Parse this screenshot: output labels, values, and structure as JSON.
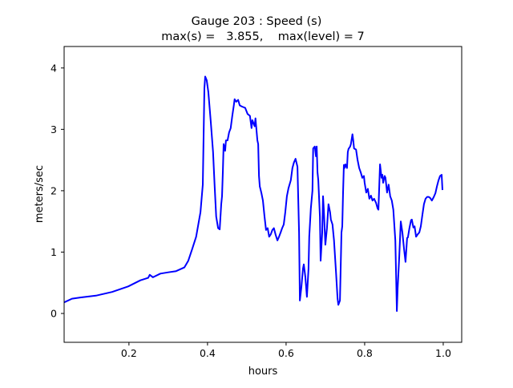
{
  "chart_data": {
    "type": "line",
    "title_line1": "Gauge 203 : Speed (s)",
    "title_line2": "max(s) =   3.855,    max(level) = 7",
    "xlabel": "hours",
    "ylabel": "meters/sec",
    "xlim": [
      0.035,
      1.047
    ],
    "ylim": [
      -0.47,
      4.35
    ],
    "xticks": [
      0.2,
      0.4,
      0.6,
      0.8,
      1.0
    ],
    "xtick_labels": [
      "0.2",
      "0.4",
      "0.6",
      "0.8",
      "1.0"
    ],
    "yticks": [
      0,
      1,
      2,
      3,
      4
    ],
    "ytick_labels": [
      "0",
      "1",
      "2",
      "3",
      "4"
    ],
    "grid": false,
    "series": [
      {
        "name": "speed",
        "color": "#0000ff",
        "x": [
          0.035,
          0.055,
          0.076,
          0.116,
          0.157,
          0.198,
          0.229,
          0.249,
          0.253,
          0.261,
          0.28,
          0.3,
          0.32,
          0.341,
          0.351,
          0.361,
          0.371,
          0.382,
          0.388,
          0.392,
          0.394,
          0.398,
          0.402,
          0.408,
          0.414,
          0.418,
          0.422,
          0.427,
          0.431,
          0.435,
          0.437,
          0.439,
          0.441,
          0.445,
          0.447,
          0.451,
          0.455,
          0.459,
          0.463,
          0.467,
          0.469,
          0.473,
          0.478,
          0.482,
          0.488,
          0.496,
          0.502,
          0.508,
          0.512,
          0.514,
          0.52,
          0.522,
          0.527,
          0.529,
          0.531,
          0.533,
          0.537,
          0.541,
          0.545,
          0.549,
          0.553,
          0.557,
          0.561,
          0.565,
          0.569,
          0.573,
          0.578,
          0.582,
          0.586,
          0.59,
          0.594,
          0.598,
          0.602,
          0.606,
          0.612,
          0.616,
          0.62,
          0.624,
          0.629,
          0.633,
          0.635,
          0.639,
          0.643,
          0.645,
          0.649,
          0.653,
          0.657,
          0.659,
          0.663,
          0.667,
          0.669,
          0.673,
          0.676,
          0.678,
          0.68,
          0.682,
          0.686,
          0.688,
          0.692,
          0.694,
          0.696,
          0.7,
          0.704,
          0.708,
          0.712,
          0.714,
          0.718,
          0.722,
          0.727,
          0.731,
          0.733,
          0.737,
          0.739,
          0.741,
          0.743,
          0.745,
          0.747,
          0.749,
          0.751,
          0.755,
          0.757,
          0.759,
          0.763,
          0.765,
          0.769,
          0.771,
          0.773,
          0.778,
          0.782,
          0.786,
          0.79,
          0.794,
          0.798,
          0.8,
          0.804,
          0.808,
          0.812,
          0.816,
          0.82,
          0.824,
          0.829,
          0.833,
          0.835,
          0.839,
          0.843,
          0.845,
          0.847,
          0.851,
          0.853,
          0.857,
          0.861,
          0.865,
          0.869,
          0.873,
          0.878,
          0.88,
          0.882,
          0.884,
          0.888,
          0.892,
          0.896,
          0.9,
          0.904,
          0.908,
          0.91,
          0.914,
          0.918,
          0.92,
          0.924,
          0.927,
          0.931,
          0.935,
          0.939,
          0.943,
          0.947,
          0.951,
          0.955,
          0.959,
          0.963,
          0.967,
          0.971,
          0.976,
          0.98,
          0.984,
          0.988,
          0.992,
          0.996,
          0.998
        ],
        "y": [
          0.18,
          0.24,
          0.26,
          0.29,
          0.35,
          0.44,
          0.54,
          0.58,
          0.63,
          0.59,
          0.65,
          0.67,
          0.69,
          0.75,
          0.86,
          1.05,
          1.25,
          1.65,
          2.1,
          3.67,
          3.86,
          3.8,
          3.61,
          3.15,
          2.63,
          2.1,
          1.58,
          1.39,
          1.37,
          1.78,
          1.91,
          2.3,
          2.76,
          2.65,
          2.82,
          2.82,
          2.95,
          3.02,
          3.22,
          3.39,
          3.49,
          3.45,
          3.48,
          3.39,
          3.37,
          3.35,
          3.25,
          3.22,
          3.02,
          3.15,
          3.05,
          3.18,
          2.82,
          2.76,
          2.24,
          2.07,
          1.97,
          1.84,
          1.58,
          1.36,
          1.39,
          1.25,
          1.29,
          1.36,
          1.39,
          1.29,
          1.19,
          1.25,
          1.32,
          1.39,
          1.45,
          1.65,
          1.91,
          2.04,
          2.17,
          2.37,
          2.46,
          2.52,
          2.39,
          1.32,
          0.21,
          0.43,
          0.73,
          0.8,
          0.6,
          0.27,
          0.73,
          1.25,
          1.71,
          2.0,
          2.69,
          2.72,
          2.56,
          2.72,
          2.3,
          2.17,
          1.58,
          0.86,
          1.32,
          1.91,
          1.69,
          1.12,
          1.39,
          1.78,
          1.65,
          1.53,
          1.45,
          1.19,
          0.67,
          0.25,
          0.14,
          0.21,
          0.73,
          1.32,
          1.42,
          1.97,
          2.42,
          2.37,
          2.43,
          2.37,
          2.63,
          2.68,
          2.72,
          2.76,
          2.92,
          2.82,
          2.69,
          2.67,
          2.5,
          2.37,
          2.3,
          2.21,
          2.24,
          2.13,
          1.97,
          2.03,
          1.87,
          1.92,
          1.84,
          1.87,
          1.8,
          1.71,
          1.69,
          2.43,
          2.21,
          2.26,
          2.13,
          2.24,
          2.21,
          1.97,
          2.1,
          1.91,
          1.84,
          1.69,
          1.19,
          0.6,
          0.04,
          0.41,
          0.93,
          1.5,
          1.32,
          1.06,
          0.84,
          1.23,
          1.24,
          1.39,
          1.52,
          1.53,
          1.4,
          1.42,
          1.25,
          1.29,
          1.32,
          1.42,
          1.61,
          1.78,
          1.87,
          1.9,
          1.9,
          1.88,
          1.84,
          1.9,
          1.96,
          2.07,
          2.17,
          2.24,
          2.26,
          2.01
        ]
      }
    ]
  }
}
